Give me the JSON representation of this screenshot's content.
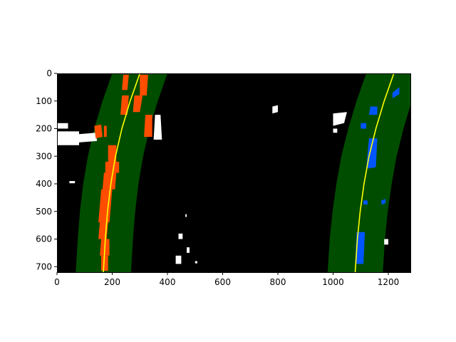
{
  "chart_data": {
    "type": "image",
    "title": "",
    "xlabel": "",
    "ylabel": "",
    "xlim": [
      0,
      1280
    ],
    "ylim": [
      720,
      0
    ],
    "x_ticks": [
      0,
      200,
      400,
      600,
      800,
      1000,
      1200
    ],
    "y_ticks": [
      0,
      100,
      200,
      300,
      400,
      500,
      600,
      700
    ],
    "grid": false,
    "legend": "none",
    "colors": {
      "background": "#000000",
      "lane_window": "#004d00",
      "left_lane_pixels": "#ff4d00",
      "right_lane_pixels": "#0055ff",
      "fit_line": "#ffff00",
      "edge_noise": "#ffffff"
    },
    "lane_window_halfwidth": 100,
    "left_fit": {
      "name": "",
      "points": [
        {
          "x": 300,
          "y": 0
        },
        {
          "x": 265,
          "y": 100
        },
        {
          "x": 235,
          "y": 200
        },
        {
          "x": 212,
          "y": 300
        },
        {
          "x": 195,
          "y": 400
        },
        {
          "x": 183,
          "y": 500
        },
        {
          "x": 175,
          "y": 600
        },
        {
          "x": 168,
          "y": 720
        }
      ]
    },
    "right_fit": {
      "name": "",
      "points": [
        {
          "x": 1220,
          "y": 0
        },
        {
          "x": 1185,
          "y": 100
        },
        {
          "x": 1155,
          "y": 200
        },
        {
          "x": 1130,
          "y": 300
        },
        {
          "x": 1112,
          "y": 400
        },
        {
          "x": 1098,
          "y": 500
        },
        {
          "x": 1088,
          "y": 600
        },
        {
          "x": 1080,
          "y": 720
        }
      ]
    },
    "left_lane_pixel_regions": [
      [
        [
          240,
          5
        ],
        [
          260,
          5
        ],
        [
          255,
          60
        ],
        [
          235,
          60
        ]
      ],
      [
        [
          300,
          5
        ],
        [
          330,
          5
        ],
        [
          325,
          80
        ],
        [
          300,
          80
        ]
      ],
      [
        [
          235,
          80
        ],
        [
          260,
          80
        ],
        [
          255,
          150
        ],
        [
          230,
          150
        ]
      ],
      [
        [
          280,
          80
        ],
        [
          310,
          80
        ],
        [
          300,
          140
        ],
        [
          275,
          140
        ]
      ],
      [
        [
          135,
          190
        ],
        [
          160,
          185
        ],
        [
          165,
          230
        ],
        [
          140,
          235
        ]
      ],
      [
        [
          170,
          190
        ],
        [
          180,
          190
        ],
        [
          180,
          230
        ],
        [
          170,
          230
        ]
      ],
      [
        [
          320,
          150
        ],
        [
          345,
          150
        ],
        [
          345,
          230
        ],
        [
          315,
          230
        ]
      ],
      [
        [
          185,
          260
        ],
        [
          215,
          260
        ],
        [
          215,
          320
        ],
        [
          185,
          320
        ]
      ],
      [
        [
          175,
          320
        ],
        [
          225,
          320
        ],
        [
          225,
          360
        ],
        [
          175,
          360
        ]
      ],
      [
        [
          170,
          360
        ],
        [
          215,
          360
        ],
        [
          210,
          420
        ],
        [
          165,
          420
        ]
      ],
      [
        [
          160,
          420
        ],
        [
          200,
          420
        ],
        [
          195,
          480
        ],
        [
          155,
          480
        ]
      ],
      [
        [
          155,
          480
        ],
        [
          195,
          480
        ],
        [
          190,
          540
        ],
        [
          150,
          540
        ]
      ],
      [
        [
          155,
          540
        ],
        [
          185,
          540
        ],
        [
          180,
          600
        ],
        [
          150,
          600
        ]
      ],
      [
        [
          160,
          600
        ],
        [
          190,
          600
        ],
        [
          190,
          660
        ],
        [
          155,
          660
        ]
      ],
      [
        [
          160,
          660
        ],
        [
          185,
          660
        ],
        [
          185,
          715
        ],
        [
          160,
          715
        ]
      ]
    ],
    "right_lane_pixel_regions": [
      [
        [
          1215,
          70
        ],
        [
          1240,
          50
        ],
        [
          1240,
          75
        ],
        [
          1215,
          90
        ]
      ],
      [
        [
          1135,
          120
        ],
        [
          1160,
          120
        ],
        [
          1160,
          150
        ],
        [
          1130,
          150
        ]
      ],
      [
        [
          1100,
          180
        ],
        [
          1120,
          180
        ],
        [
          1120,
          200
        ],
        [
          1100,
          200
        ]
      ],
      [
        [
          1130,
          235
        ],
        [
          1160,
          235
        ],
        [
          1155,
          340
        ],
        [
          1120,
          345
        ]
      ],
      [
        [
          1110,
          460
        ],
        [
          1125,
          460
        ],
        [
          1125,
          475
        ],
        [
          1110,
          475
        ]
      ],
      [
        [
          1175,
          460
        ],
        [
          1190,
          455
        ],
        [
          1190,
          470
        ],
        [
          1175,
          475
        ]
      ],
      [
        [
          1085,
          575
        ],
        [
          1115,
          575
        ],
        [
          1110,
          690
        ],
        [
          1080,
          690
        ]
      ]
    ],
    "noise_regions": [
      [
        [
          0,
          180
        ],
        [
          40,
          180
        ],
        [
          40,
          200
        ],
        [
          0,
          200
        ]
      ],
      [
        [
          0,
          210
        ],
        [
          80,
          210
        ],
        [
          80,
          260
        ],
        [
          0,
          260
        ]
      ],
      [
        [
          80,
          220
        ],
        [
          140,
          215
        ],
        [
          145,
          245
        ],
        [
          80,
          250
        ]
      ],
      [
        [
          355,
          150
        ],
        [
          375,
          150
        ],
        [
          380,
          240
        ],
        [
          350,
          240
        ]
      ],
      [
        [
          780,
          120
        ],
        [
          800,
          115
        ],
        [
          800,
          140
        ],
        [
          780,
          145
        ]
      ],
      [
        [
          1000,
          145
        ],
        [
          1050,
          140
        ],
        [
          1040,
          180
        ],
        [
          1000,
          190
        ]
      ],
      [
        [
          1000,
          200
        ],
        [
          1015,
          200
        ],
        [
          1015,
          215
        ],
        [
          1000,
          215
        ]
      ],
      [
        [
          45,
          390
        ],
        [
          65,
          390
        ],
        [
          65,
          398
        ],
        [
          45,
          398
        ]
      ],
      [
        [
          465,
          510
        ],
        [
          470,
          510
        ],
        [
          470,
          520
        ],
        [
          465,
          520
        ]
      ],
      [
        [
          440,
          580
        ],
        [
          455,
          580
        ],
        [
          455,
          600
        ],
        [
          440,
          600
        ]
      ],
      [
        [
          470,
          630
        ],
        [
          480,
          630
        ],
        [
          480,
          650
        ],
        [
          470,
          650
        ]
      ],
      [
        [
          430,
          660
        ],
        [
          450,
          660
        ],
        [
          450,
          690
        ],
        [
          430,
          690
        ]
      ],
      [
        [
          500,
          680
        ],
        [
          508,
          680
        ],
        [
          508,
          688
        ],
        [
          500,
          688
        ]
      ],
      [
        [
          1185,
          600
        ],
        [
          1200,
          600
        ],
        [
          1200,
          620
        ],
        [
          1185,
          620
        ]
      ]
    ]
  }
}
